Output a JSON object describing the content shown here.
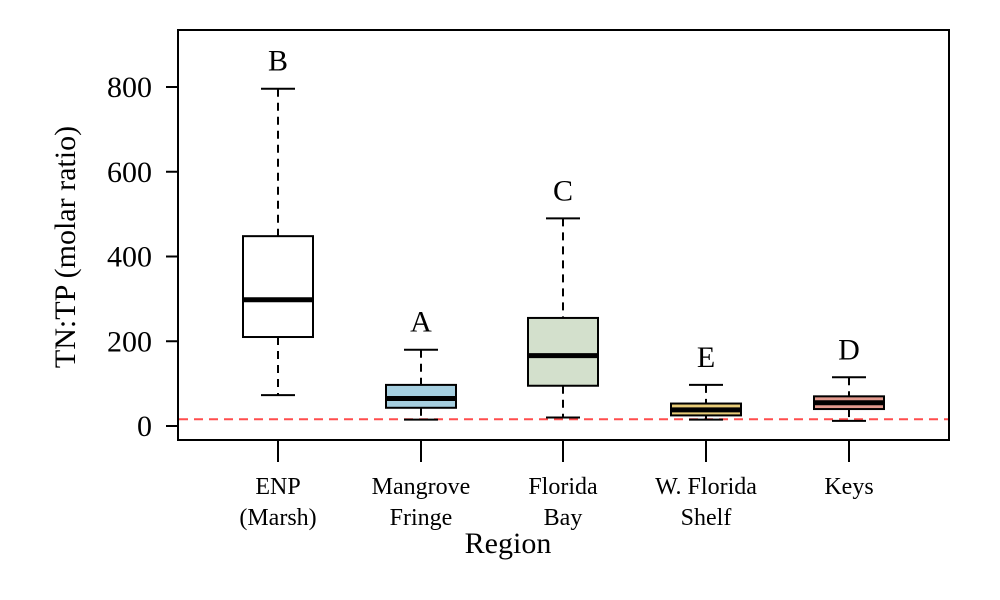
{
  "chart_data": {
    "type": "box",
    "xlabel": "Region",
    "ylabel": "TN:TP (molar ratio)",
    "ylim": [
      -30,
      930
    ],
    "yticks": [
      0,
      200,
      400,
      600,
      800
    ],
    "reference_line": {
      "y": 16,
      "color": "#ff4d4d",
      "style": "dashed"
    },
    "categories": [
      {
        "label_lines": [
          "ENP",
          "(Marsh)"
        ],
        "letter": "B",
        "color": "#ffffff",
        "whisker_low": 73,
        "q1": 210,
        "median": 298,
        "q3": 448,
        "whisker_high": 796
      },
      {
        "label_lines": [
          "Mangrove",
          "Fringe"
        ],
        "letter": "A",
        "color": "#a6cfe0",
        "whisker_low": 15,
        "q1": 43,
        "median": 65,
        "q3": 97,
        "whisker_high": 180
      },
      {
        "label_lines": [
          "Florida",
          "Bay"
        ],
        "letter": "C",
        "color": "#d3e0cc",
        "whisker_low": 20,
        "q1": 95,
        "median": 166,
        "q3": 255,
        "whisker_high": 490
      },
      {
        "label_lines": [
          "W. Florida",
          "Shelf"
        ],
        "letter": "E",
        "color": "#e8cc78",
        "whisker_low": 15,
        "q1": 25,
        "median": 38,
        "q3": 53,
        "whisker_high": 97
      },
      {
        "label_lines": [
          "Keys"
        ],
        "letter": "D",
        "color": "#e39a8e",
        "whisker_low": 12,
        "q1": 40,
        "median": 55,
        "q3": 70,
        "whisker_high": 115
      }
    ]
  }
}
